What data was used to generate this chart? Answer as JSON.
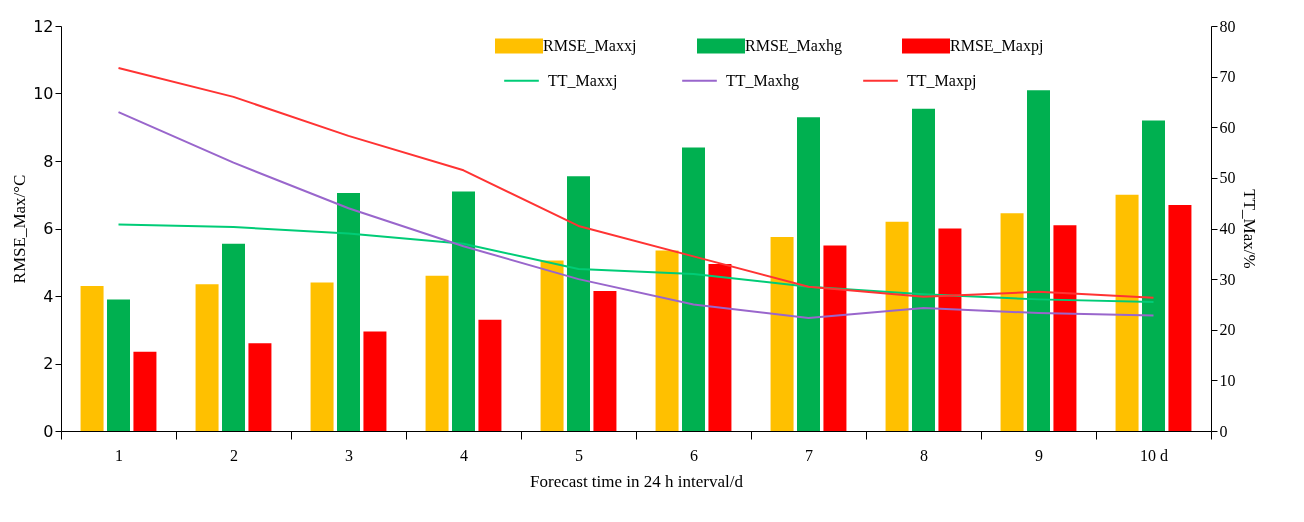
{
  "chart_data": {
    "type": "bar",
    "xlabel": "Forecast time in 24 h interval/d",
    "ylabel": "RMSE_Max/°C",
    "y2label": "TT_Max/%",
    "categories": [
      "1",
      "2",
      "3",
      "4",
      "5",
      "6",
      "7",
      "8",
      "9",
      "10 d"
    ],
    "series": [
      {
        "name": "RMSE_Maxxj",
        "type": "bar",
        "color": "#ffc000",
        "values": [
          4.3,
          4.35,
          4.4,
          4.6,
          5.05,
          5.35,
          5.75,
          6.2,
          6.45,
          7.0
        ]
      },
      {
        "name": "RMSE_Maxhg",
        "type": "bar",
        "color": "#00b050",
        "values": [
          3.9,
          5.55,
          7.05,
          7.1,
          7.55,
          8.4,
          9.3,
          9.55,
          10.1,
          9.2
        ]
      },
      {
        "name": "RMSE_Maxpj",
        "type": "bar",
        "color": "#ff0000",
        "values": [
          2.35,
          2.6,
          2.95,
          3.3,
          4.15,
          4.95,
          5.5,
          6.0,
          6.1,
          6.7
        ]
      },
      {
        "name": "TT_Maxxj",
        "type": "line",
        "axis": "y2",
        "color": "#00cc77",
        "values": [
          40.8,
          40.3,
          39,
          37,
          32,
          31,
          28.5,
          27,
          26,
          25.5
        ]
      },
      {
        "name": "TT_Maxhg",
        "type": "line",
        "axis": "y2",
        "color": "#9966cc",
        "values": [
          63,
          53,
          44,
          36.5,
          30,
          25,
          22.3,
          24.3,
          23.3,
          22.8
        ]
      },
      {
        "name": "TT_Maxpj",
        "type": "line",
        "axis": "y2",
        "color": "#ff3333",
        "values": [
          71.7,
          66,
          58.3,
          51.5,
          40.5,
          34.5,
          28.5,
          26.5,
          27.5,
          26.3
        ]
      }
    ],
    "ylim": [
      0,
      12
    ],
    "yticks": [
      0,
      2,
      4,
      6,
      8,
      10,
      12
    ],
    "y2lim": [
      0,
      80
    ],
    "y2ticks": [
      0,
      10,
      20,
      30,
      40,
      50,
      60,
      70,
      80
    ],
    "legend": "top",
    "grid": false
  }
}
